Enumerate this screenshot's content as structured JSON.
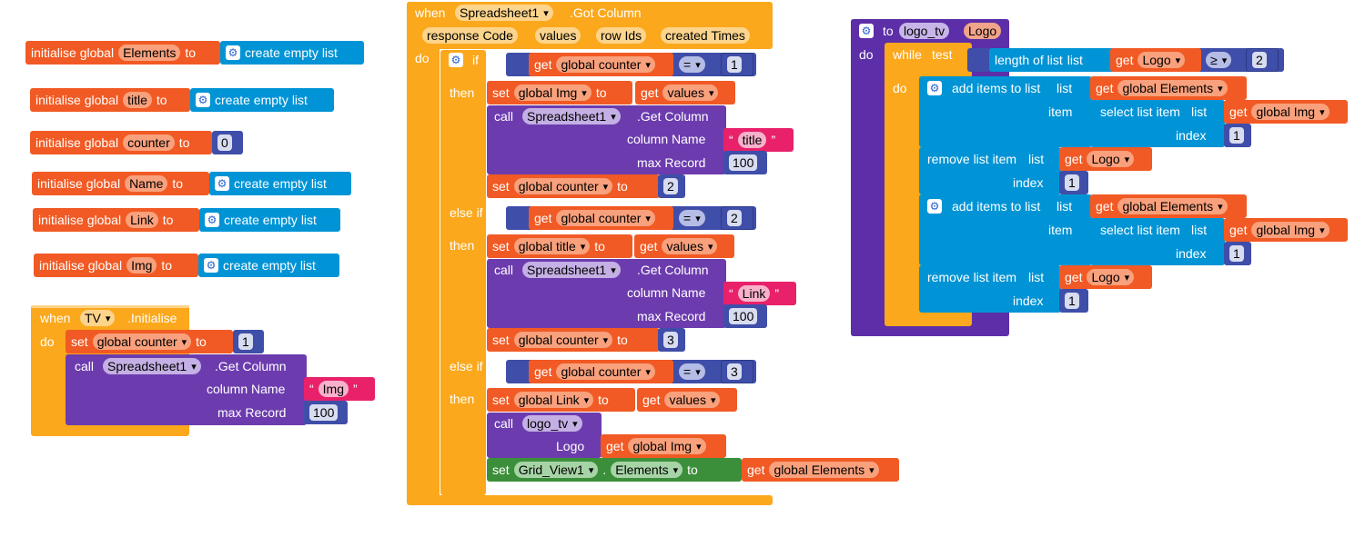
{
  "globals": [
    {
      "kw": "initialise global",
      "name": "Elements",
      "to": "to",
      "val": "create empty list"
    },
    {
      "kw": "initialise global",
      "name": "title",
      "to": "to",
      "val": "create empty list"
    },
    {
      "kw": "initialise global",
      "name": "counter",
      "to": "to",
      "val": "0"
    },
    {
      "kw": "initialise global",
      "name": "Name",
      "to": "to",
      "val": "create empty list"
    },
    {
      "kw": "initialise global",
      "name": "Link",
      "to": "to",
      "val": "create empty list"
    },
    {
      "kw": "initialise global",
      "name": "Img",
      "to": "to",
      "val": "create empty list"
    }
  ],
  "tv": {
    "when": "when",
    "comp": "TV",
    "event": ".Initialise",
    "do": "do",
    "set": "set",
    "var": "global counter",
    "to": "to",
    "val": "1",
    "call": "call",
    "ss": "Spreadsheet1",
    "method": ".Get Column",
    "col_label": "column Name",
    "col_val": "Img",
    "max_label": "max Record",
    "max_val": "100"
  },
  "gc": {
    "when": "when",
    "comp": "Spreadsheet1",
    "event": ".Got Column",
    "params": [
      "response Code",
      "values",
      "row Ids",
      "created Times"
    ],
    "do": "do",
    "if": "if",
    "elseif": "else if",
    "then": "then",
    "get": "get",
    "counter": "global counter",
    "eq": "=",
    "set": "set",
    "to": "to",
    "values": "values",
    "call": "call",
    "ss": "Spreadsheet1",
    "method": ".Get Column",
    "col_label": "column Name",
    "max_label": "max Record",
    "max_val": "100",
    "b1": {
      "cond": "1",
      "var": "global Img",
      "col": "title",
      "next": "2"
    },
    "b2": {
      "cond": "2",
      "var": "global title",
      "col": "Link",
      "next": "3"
    },
    "b3": {
      "cond": "3",
      "var": "global Link",
      "proc": "logo_tv",
      "arg": "Logo",
      "arg_val": "global Img",
      "grid": "Grid_View1",
      "prop": "Elements",
      "dot": ".",
      "elements": "global Elements"
    }
  },
  "proc": {
    "to": "to",
    "name": "logo_tv",
    "param": "Logo",
    "do": "do",
    "while": "while",
    "test": "test",
    "length": "length of list",
    "list": "list",
    "get": "get",
    "logo": "Logo",
    "ge": "≥",
    "ge_val": "2",
    "add": "add items to list",
    "item": "item",
    "select": "select list item",
    "index": "index",
    "remove": "remove list item",
    "elements": "global Elements",
    "img": "global Img",
    "one": "1"
  },
  "icons": {
    "gear": "⚙",
    "quote_open": "“",
    "quote_close": "”"
  }
}
